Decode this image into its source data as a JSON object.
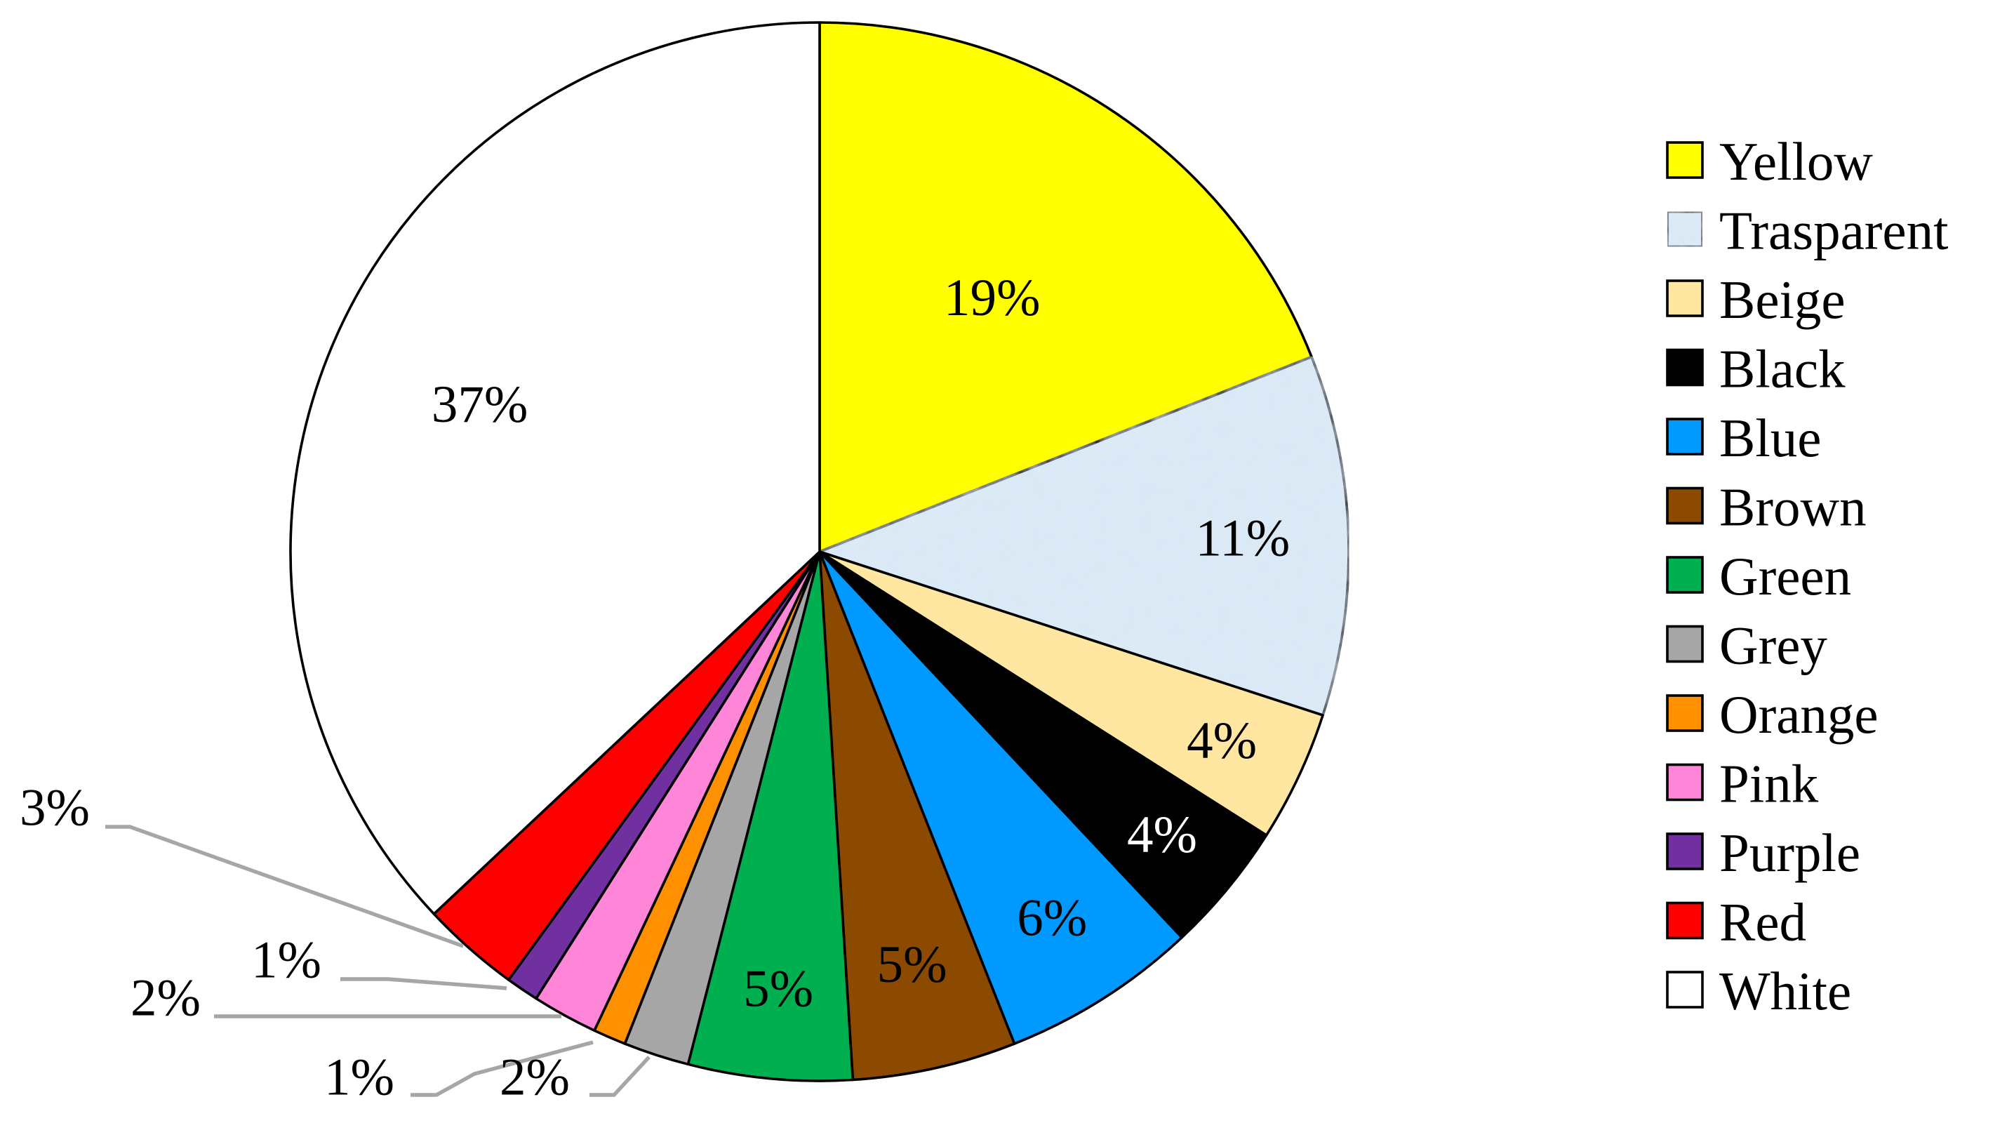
{
  "chart_data": {
    "type": "pie",
    "title": "",
    "start": "12 o'clock",
    "direction": "clockwise",
    "legend_placement": "right",
    "slices": [
      {
        "label": "Yellow",
        "value": 19,
        "display": "19%",
        "color": "#ffff00",
        "label_color": "#000000"
      },
      {
        "label": "Trasparent",
        "value": 11,
        "display": "11%",
        "color": "#dbe9f7",
        "label_color": "#000000"
      },
      {
        "label": "Beige",
        "value": 4,
        "display": "4%",
        "color": "#ffe6a1",
        "label_color": "#000000"
      },
      {
        "label": "Black",
        "value": 4,
        "display": "4%",
        "color": "#000000",
        "label_color": "#ffffff"
      },
      {
        "label": "Blue",
        "value": 6,
        "display": "6%",
        "color": "#0099ff",
        "label_color": "#000000"
      },
      {
        "label": "Brown",
        "value": 5,
        "display": "5%",
        "color": "#8b4a00",
        "label_color": "#000000"
      },
      {
        "label": "Green",
        "value": 5,
        "display": "5%",
        "color": "#00b050",
        "label_color": "#000000"
      },
      {
        "label": "Grey",
        "value": 2,
        "display": "2%",
        "color": "#a6a6a6",
        "label_color": "#000000"
      },
      {
        "label": "Orange",
        "value": 1,
        "display": "1%",
        "color": "#ff9100",
        "label_color": "#000000"
      },
      {
        "label": "Pink",
        "value": 2,
        "display": "2%",
        "color": "#ff85d8",
        "label_color": "#000000"
      },
      {
        "label": "Purple",
        "value": 1,
        "display": "1%",
        "color": "#7030a0",
        "label_color": "#000000"
      },
      {
        "label": "Red",
        "value": 3,
        "display": "3%",
        "color": "#ff0000",
        "label_color": "#000000"
      },
      {
        "label": "White",
        "value": 37,
        "display": "37%",
        "color": "#ffffff",
        "label_color": "#000000"
      }
    ]
  }
}
